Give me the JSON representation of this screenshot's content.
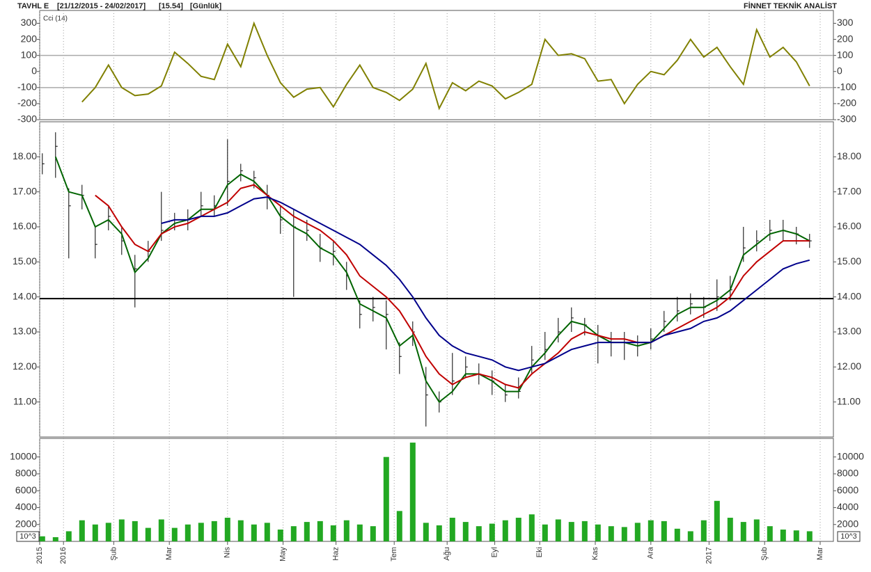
{
  "header": {
    "symbol": "TAVHL E",
    "range": "[21/12/2015 - 24/02/2017]",
    "last": "[15.54]",
    "period": "[Günlük]",
    "vendor": "FİNNET TEKNİK ANALİST"
  },
  "chart_data": [
    {
      "type": "line",
      "title": "Cci (14)",
      "color": "#808000",
      "x": [
        1,
        6,
        11,
        16,
        21,
        26,
        31,
        36,
        41,
        46,
        51,
        56,
        61,
        66,
        71,
        76,
        81,
        86,
        91,
        96,
        101,
        106,
        111,
        116,
        121,
        126,
        131,
        136,
        141,
        146,
        151,
        156,
        161,
        166,
        171,
        176,
        181,
        186,
        191,
        196,
        201,
        206,
        211,
        216,
        221,
        226,
        231,
        236,
        241,
        246,
        251,
        256,
        261,
        266,
        271,
        276,
        281,
        286,
        291
      ],
      "values": [
        null,
        null,
        null,
        -190,
        -100,
        40,
        -100,
        -150,
        -140,
        -90,
        120,
        50,
        -30,
        -50,
        170,
        30,
        300,
        100,
        -70,
        -160,
        -110,
        -100,
        -220,
        -80,
        40,
        -100,
        -130,
        -180,
        -110,
        50,
        -230,
        -70,
        -120,
        -60,
        -90,
        -170,
        -130,
        -80,
        200,
        100,
        110,
        80,
        -60,
        -50,
        -200,
        -80,
        0,
        -20,
        70,
        200,
        90,
        150,
        30,
        -80,
        260,
        90,
        150,
        60,
        -90
      ],
      "hlines": [
        100,
        -100
      ],
      "xlim": [
        0,
        300
      ],
      "ylim": [
        -300,
        380
      ],
      "yticks": [
        -300,
        -200,
        -100,
        0,
        100,
        200,
        300
      ]
    },
    {
      "type": "ohlc",
      "x": [
        1,
        6,
        11,
        16,
        21,
        26,
        31,
        36,
        41,
        46,
        51,
        56,
        61,
        66,
        71,
        76,
        81,
        86,
        91,
        96,
        101,
        106,
        111,
        116,
        121,
        126,
        131,
        136,
        141,
        146,
        151,
        156,
        161,
        166,
        171,
        176,
        181,
        186,
        191,
        196,
        201,
        206,
        211,
        216,
        221,
        226,
        231,
        236,
        241,
        246,
        251,
        256,
        261,
        266,
        271,
        276,
        281,
        286,
        291
      ],
      "high": [
        18.1,
        18.7,
        17.1,
        17.2,
        16.0,
        16.6,
        16.0,
        15.2,
        15.6,
        17.0,
        16.4,
        16.5,
        17.0,
        16.9,
        18.5,
        17.8,
        17.6,
        17.2,
        16.6,
        16.5,
        16.2,
        15.8,
        15.6,
        15.0,
        13.9,
        14.0,
        13.9,
        12.7,
        13.3,
        12.0,
        11.3,
        12.4,
        12.3,
        12.1,
        11.9,
        11.5,
        11.7,
        12.6,
        13.0,
        13.4,
        13.7,
        13.4,
        13.2,
        13.0,
        13.0,
        12.9,
        13.1,
        13.6,
        14.0,
        14.1,
        14.0,
        14.5,
        14.6,
        16.0,
        15.9,
        16.2,
        16.2,
        16.0,
        15.8
      ],
      "low": [
        17.5,
        17.4,
        15.1,
        16.5,
        15.1,
        15.9,
        15.2,
        13.7,
        15.0,
        15.6,
        15.9,
        15.9,
        16.3,
        16.3,
        16.6,
        17.3,
        17.1,
        16.5,
        15.8,
        14.0,
        15.6,
        15.0,
        14.9,
        14.2,
        13.1,
        13.3,
        12.5,
        11.8,
        12.6,
        10.3,
        10.7,
        11.2,
        11.7,
        11.5,
        11.2,
        11.0,
        11.1,
        11.8,
        12.2,
        12.7,
        13.0,
        12.9,
        12.1,
        12.3,
        12.2,
        12.3,
        12.5,
        13.0,
        13.3,
        13.5,
        13.4,
        13.6,
        13.9,
        15.0,
        15.3,
        15.6,
        15.6,
        15.5,
        15.4
      ],
      "close": [
        17.8,
        18.3,
        16.6,
        16.9,
        15.5,
        16.3,
        15.6,
        14.8,
        15.3,
        15.9,
        16.2,
        16.2,
        16.6,
        16.6,
        17.3,
        17.6,
        17.4,
        16.9,
        16.2,
        16.0,
        15.9,
        15.4,
        15.3,
        14.6,
        13.5,
        13.7,
        13.5,
        12.3,
        13.0,
        11.2,
        11.0,
        11.6,
        12.0,
        11.8,
        11.6,
        11.2,
        11.3,
        12.2,
        12.5,
        13.0,
        13.4,
        13.2,
        12.9,
        12.7,
        12.7,
        12.6,
        12.8,
        13.3,
        13.6,
        13.8,
        13.7,
        14.0,
        14.2,
        15.4,
        15.6,
        15.9,
        15.9,
        15.8,
        15.6
      ],
      "bar_color": "#000000",
      "series": [
        {
          "color": "#006400",
          "values": [
            null,
            18.0,
            17.0,
            16.9,
            16.0,
            16.2,
            15.8,
            14.7,
            15.1,
            15.8,
            16.1,
            16.2,
            16.5,
            16.5,
            17.2,
            17.5,
            17.3,
            16.9,
            16.3,
            16.0,
            15.8,
            15.4,
            15.2,
            14.7,
            13.8,
            13.6,
            13.4,
            12.6,
            12.9,
            11.6,
            11.0,
            11.3,
            11.8,
            11.8,
            11.6,
            11.3,
            11.3,
            12.0,
            12.4,
            12.9,
            13.3,
            13.2,
            12.9,
            12.7,
            12.7,
            12.6,
            12.7,
            13.1,
            13.5,
            13.7,
            13.7,
            13.9,
            14.2,
            15.2,
            15.5,
            15.8,
            15.9,
            15.8,
            15.6
          ]
        },
        {
          "color": "#c00000",
          "values": [
            null,
            null,
            null,
            null,
            16.9,
            16.6,
            16.0,
            15.5,
            15.3,
            15.8,
            16.0,
            16.1,
            16.3,
            16.5,
            16.7,
            17.1,
            17.2,
            16.9,
            16.6,
            16.3,
            16.1,
            15.9,
            15.6,
            15.2,
            14.6,
            14.3,
            14.0,
            13.6,
            13.0,
            12.3,
            11.8,
            11.5,
            11.7,
            11.8,
            11.7,
            11.5,
            11.4,
            11.8,
            12.1,
            12.4,
            12.8,
            13.0,
            12.9,
            12.8,
            12.8,
            12.7,
            12.7,
            12.9,
            13.1,
            13.3,
            13.5,
            13.7,
            14.0,
            14.6,
            15.0,
            15.3,
            15.6,
            15.6,
            15.6
          ]
        },
        {
          "color": "#00008b",
          "values": [
            null,
            null,
            null,
            null,
            null,
            null,
            null,
            null,
            null,
            16.1,
            16.2,
            16.2,
            16.3,
            16.3,
            16.4,
            16.6,
            16.8,
            16.85,
            16.7,
            16.5,
            16.3,
            16.1,
            15.9,
            15.7,
            15.5,
            15.2,
            14.9,
            14.5,
            14.0,
            13.4,
            12.9,
            12.6,
            12.4,
            12.3,
            12.2,
            12.0,
            11.9,
            12.0,
            12.1,
            12.3,
            12.5,
            12.6,
            12.7,
            12.7,
            12.7,
            12.7,
            12.7,
            12.9,
            13.0,
            13.1,
            13.3,
            13.4,
            13.6,
            13.9,
            14.2,
            14.5,
            14.8,
            14.95,
            15.05
          ]
        }
      ],
      "hline": 13.95,
      "xlim": [
        0,
        300
      ],
      "ylim": [
        10.0,
        19.0
      ],
      "yticks": [
        {
          "value": 11,
          "label": "11.00"
        },
        {
          "value": 12,
          "label": "12.00"
        },
        {
          "value": 13,
          "label": "13.00"
        },
        {
          "value": 14,
          "label": "14.00"
        },
        {
          "value": 15,
          "label": "15.00"
        },
        {
          "value": 16,
          "label": "16.00"
        },
        {
          "value": 17,
          "label": "17.00"
        },
        {
          "value": 18,
          "label": "18.00"
        }
      ]
    },
    {
      "type": "bar",
      "unit": "10^3",
      "color": "#22a822",
      "x": [
        1,
        6,
        11,
        16,
        21,
        26,
        31,
        36,
        41,
        46,
        51,
        56,
        61,
        66,
        71,
        76,
        81,
        86,
        91,
        96,
        101,
        106,
        111,
        116,
        121,
        126,
        131,
        136,
        141,
        146,
        151,
        156,
        161,
        166,
        171,
        176,
        181,
        186,
        191,
        196,
        201,
        206,
        211,
        216,
        221,
        226,
        231,
        236,
        241,
        246,
        251,
        256,
        261,
        266,
        271,
        276,
        281,
        286,
        291
      ],
      "values": [
        600,
        500,
        1200,
        2500,
        2000,
        2200,
        2600,
        2400,
        1600,
        2600,
        1600,
        2000,
        2200,
        2400,
        2800,
        2500,
        2000,
        2200,
        1400,
        1800,
        2300,
        2400,
        1900,
        2500,
        2000,
        1800,
        10000,
        3600,
        11700,
        2200,
        1900,
        2800,
        2300,
        1800,
        2100,
        2500,
        2800,
        3200,
        2000,
        2600,
        2300,
        2400,
        2000,
        1800,
        1700,
        2200,
        2500,
        2400,
        1500,
        1200,
        2500,
        4800,
        2800,
        2300,
        2600,
        1800,
        1400,
        1300,
        1200
      ],
      "xlim": [
        0,
        300
      ],
      "ylim": [
        0,
        12200
      ],
      "yticks": [
        2000,
        4000,
        6000,
        8000,
        10000
      ],
      "xticks": [
        {
          "value": 0,
          "label": "2015"
        },
        {
          "value": 9,
          "label": "2016"
        },
        {
          "value": 28,
          "label": "Şub"
        },
        {
          "value": 49,
          "label": "Mar"
        },
        {
          "value": 71,
          "label": "Nis"
        },
        {
          "value": 92,
          "label": "May"
        },
        {
          "value": 112,
          "label": "Haz"
        },
        {
          "value": 134,
          "label": "Tem"
        },
        {
          "value": 154,
          "label": "Ağu"
        },
        {
          "value": 172,
          "label": "Eyl"
        },
        {
          "value": 189,
          "label": "Eki"
        },
        {
          "value": 210,
          "label": "Kas"
        },
        {
          "value": 231,
          "label": "Ara"
        },
        {
          "value": 253,
          "label": "2017"
        },
        {
          "value": 274,
          "label": "Şub"
        },
        {
          "value": 295,
          "label": "Mar"
        }
      ]
    }
  ]
}
